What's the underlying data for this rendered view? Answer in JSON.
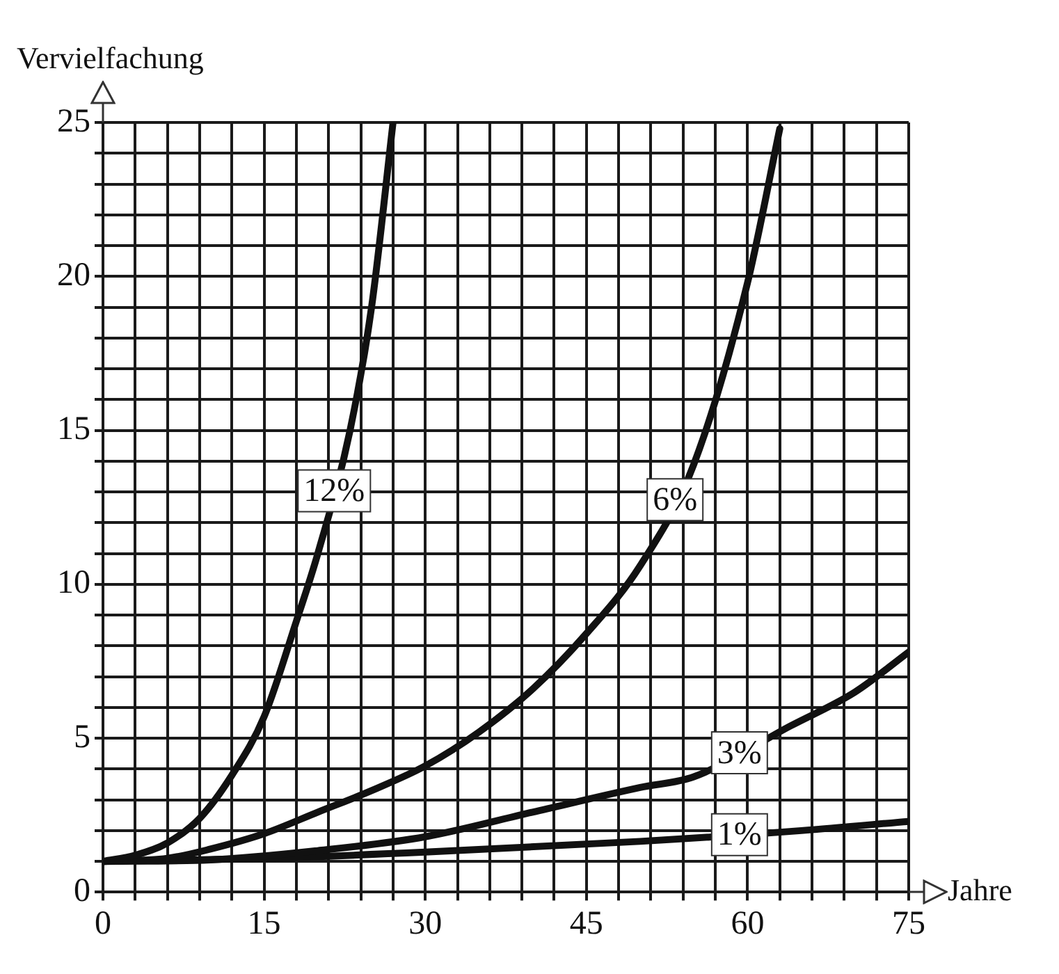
{
  "chart_data": {
    "type": "line",
    "xlabel": "Jahre",
    "ylabel": "Vervielfachung",
    "xlim": [
      0,
      75
    ],
    "ylim": [
      0,
      25
    ],
    "xticks": [
      0,
      {
        "value": 3,
        "label": null
      },
      {
        "value": 6,
        "label": null
      },
      {
        "value": 9,
        "label": null
      },
      {
        "value": 12,
        "label": null
      },
      15,
      {
        "value": 18,
        "label": null
      },
      {
        "value": 21,
        "label": null
      },
      {
        "value": 24,
        "label": null
      },
      {
        "value": 27,
        "label": null
      },
      30,
      {
        "value": 33,
        "label": null
      },
      {
        "value": 36,
        "label": null
      },
      {
        "value": 39,
        "label": null
      },
      {
        "value": 42,
        "label": null
      },
      45,
      {
        "value": 48,
        "label": null
      },
      {
        "value": 51,
        "label": null
      },
      {
        "value": 54,
        "label": null
      },
      {
        "value": 57,
        "label": null
      },
      60,
      {
        "value": 63,
        "label": null
      },
      {
        "value": 66,
        "label": null
      },
      {
        "value": 69,
        "label": null
      },
      {
        "value": 72,
        "label": null
      },
      75
    ],
    "yticks": [
      0,
      {
        "value": 1,
        "label": null
      },
      {
        "value": 2,
        "label": null
      },
      {
        "value": 3,
        "label": null
      },
      {
        "value": 4,
        "label": null
      },
      5,
      {
        "value": 6,
        "label": null
      },
      {
        "value": 7,
        "label": null
      },
      {
        "value": 8,
        "label": null
      },
      {
        "value": 9,
        "label": null
      },
      10,
      {
        "value": 11,
        "label": null
      },
      {
        "value": 12,
        "label": null
      },
      {
        "value": 13,
        "label": null
      },
      {
        "value": 14,
        "label": null
      },
      15,
      {
        "value": 16,
        "label": null
      },
      {
        "value": 17,
        "label": null
      },
      {
        "value": 18,
        "label": null
      },
      {
        "value": 19,
        "label": null
      },
      20,
      {
        "value": 21,
        "label": null
      },
      {
        "value": 22,
        "label": null
      },
      {
        "value": 23,
        "label": null
      },
      {
        "value": 24,
        "label": null
      },
      25
    ],
    "grid": true,
    "legend": false,
    "marker": "none",
    "line_style": "solid",
    "series": [
      {
        "name": "12%",
        "color": "#111111",
        "x": [
          0,
          3,
          6,
          9,
          12,
          15,
          18,
          20,
          23,
          25,
          27
        ],
        "values": [
          1,
          1.2,
          1.6,
          2.4,
          3.8,
          5.7,
          8.8,
          11,
          15,
          19,
          25
        ]
      },
      {
        "name": "6%",
        "color": "#111111",
        "x": [
          0,
          6,
          10,
          15,
          20,
          25,
          30,
          35,
          40,
          45,
          50,
          55,
          60,
          63
        ],
        "values": [
          1,
          1.1,
          1.4,
          1.9,
          2.6,
          3.3,
          4.1,
          5.2,
          6.6,
          8.4,
          10.6,
          13.9,
          19.8,
          24.8
        ]
      },
      {
        "name": "3%",
        "color": "#111111",
        "x": [
          0,
          10,
          20,
          30,
          40,
          50,
          55,
          64,
          70,
          75
        ],
        "values": [
          1,
          1.05,
          1.35,
          1.8,
          2.6,
          3.4,
          3.75,
          5.4,
          6.5,
          7.8
        ]
      },
      {
        "name": "1%",
        "color": "#111111",
        "x": [
          0,
          15,
          30,
          50,
          65,
          75
        ],
        "values": [
          1,
          1.1,
          1.3,
          1.65,
          2,
          2.3
        ]
      }
    ]
  }
}
